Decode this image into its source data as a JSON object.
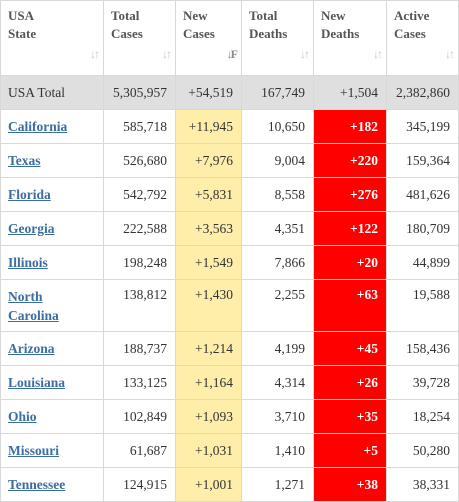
{
  "columns": [
    {
      "line1": "USA",
      "line2": "State"
    },
    {
      "line1": "Total",
      "line2": "Cases"
    },
    {
      "line1": "New",
      "line2": "Cases"
    },
    {
      "line1": "Total",
      "line2": "Deaths"
    },
    {
      "line1": "New",
      "line2": "Deaths"
    },
    {
      "line1": "Active",
      "line2": "Cases"
    }
  ],
  "sort_icon": "sort-arrows-icon",
  "total_row": {
    "state": "USA Total",
    "total_cases": "5,305,957",
    "new_cases": "+54,519",
    "total_deaths": "167,749",
    "new_deaths": "+1,504",
    "active_cases": "2,382,860"
  },
  "rows": [
    {
      "state": "California",
      "total_cases": "585,718",
      "new_cases": "+11,945",
      "total_deaths": "10,650",
      "new_deaths": "+182",
      "active_cases": "345,199"
    },
    {
      "state": "Texas",
      "total_cases": "526,680",
      "new_cases": "+7,976",
      "total_deaths": "9,004",
      "new_deaths": "+220",
      "active_cases": "159,364"
    },
    {
      "state": "Florida",
      "total_cases": "542,792",
      "new_cases": "+5,831",
      "total_deaths": "8,558",
      "new_deaths": "+276",
      "active_cases": "481,626"
    },
    {
      "state": "Georgia",
      "total_cases": "222,588",
      "new_cases": "+3,563",
      "total_deaths": "4,351",
      "new_deaths": "+122",
      "active_cases": "180,709"
    },
    {
      "state": "Illinois",
      "total_cases": "198,248",
      "new_cases": "+1,549",
      "total_deaths": "7,866",
      "new_deaths": "+20",
      "active_cases": "44,899"
    },
    {
      "state": "North Carolina",
      "total_cases": "138,812",
      "new_cases": "+1,430",
      "total_deaths": "2,255",
      "new_deaths": "+63",
      "active_cases": "19,588"
    },
    {
      "state": "Arizona",
      "total_cases": "188,737",
      "new_cases": "+1,214",
      "total_deaths": "4,199",
      "new_deaths": "+45",
      "active_cases": "158,436"
    },
    {
      "state": "Louisiana",
      "total_cases": "133,125",
      "new_cases": "+1,164",
      "total_deaths": "4,314",
      "new_deaths": "+26",
      "active_cases": "39,728"
    },
    {
      "state": "Ohio",
      "total_cases": "102,849",
      "new_cases": "+1,093",
      "total_deaths": "3,710",
      "new_deaths": "+35",
      "active_cases": "18,254"
    },
    {
      "state": "Missouri",
      "total_cases": "61,687",
      "new_cases": "+1,031",
      "total_deaths": "1,410",
      "new_deaths": "+5",
      "active_cases": "50,280"
    },
    {
      "state": "Tennessee",
      "total_cases": "124,915",
      "new_cases": "+1,001",
      "total_deaths": "1,271",
      "new_deaths": "+38",
      "active_cases": "38,331"
    }
  ],
  "colors": {
    "new_cases_bg": "#ffeeaa",
    "new_deaths_bg": "#ff0000",
    "total_row_bg": "#dfdfdf",
    "state_link": "#3b6ea0"
  }
}
